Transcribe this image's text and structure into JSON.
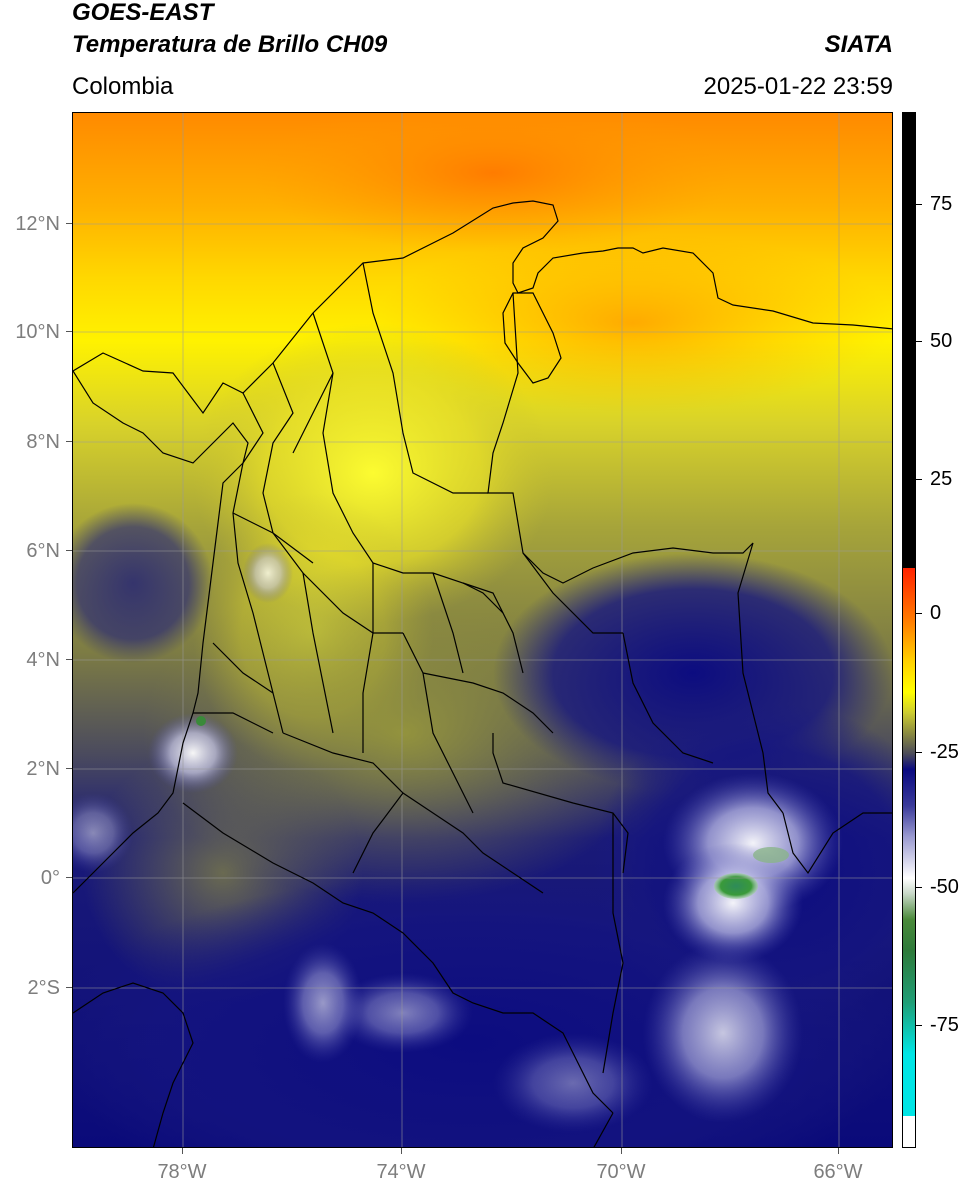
{
  "header": {
    "satellite": "GOES-EAST",
    "product": "Temperatura de Brillo CH09",
    "org": "SIATA",
    "region": "Colombia",
    "datetime": "2025-01-22 23:59"
  },
  "map": {
    "lat_labels": [
      "12°N",
      "10°N",
      "8°N",
      "6°N",
      "4°N",
      "2°N",
      "0°",
      "2°S"
    ],
    "lon_labels": [
      "78°W",
      "74°W",
      "70°W",
      "66°W"
    ]
  },
  "colorbar": {
    "ticks": [
      "75",
      "50",
      "25",
      "0",
      "-25",
      "-50",
      "-75"
    ],
    "tick_values": [
      75,
      50,
      25,
      0,
      -25,
      -50,
      -75
    ],
    "range": [
      -95,
      90
    ],
    "colors": {
      "warm_top": "#000000",
      "orange": "#ff8c00",
      "yellow": "#ffff00",
      "olive": "#8c8c3c",
      "navy": "#0a0a78",
      "white": "#ffffff",
      "green": "#2e8b2e",
      "cyan": "#00e5e5"
    }
  }
}
